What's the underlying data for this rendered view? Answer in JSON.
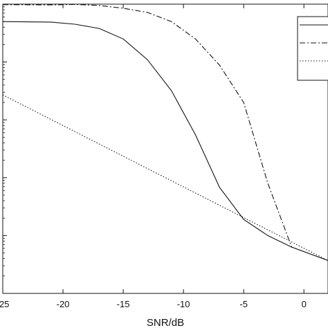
{
  "chart_data": {
    "type": "line",
    "title": "",
    "xlabel": "SNR/dB",
    "ylabel": "",
    "y_scale": "log",
    "xlim": [
      -25,
      2
    ],
    "ylim": [
      1e-05,
      1
    ],
    "grid": false,
    "legend_position": "top-right",
    "x_tick_labels": [
      "-25",
      "-20",
      "-15",
      "-10",
      "-5",
      "0"
    ],
    "x_ticks": [
      -25,
      -20,
      -15,
      -10,
      -5,
      0
    ],
    "series": [
      {
        "style": "solid",
        "x": [
          -25,
          -21,
          -19,
          -17,
          -15,
          -13,
          -11,
          -9,
          -7,
          -5,
          -3,
          -1,
          2
        ],
        "y": [
          0.5,
          0.49,
          0.45,
          0.38,
          0.25,
          0.11,
          0.032,
          0.0055,
          0.00068,
          0.00019,
          0.0001,
          6.3e-05,
          3.7e-05
        ]
      },
      {
        "style": "dashdot",
        "x": [
          -25,
          -21,
          -19,
          -17,
          -15,
          -13,
          -11,
          -9,
          -7,
          -5,
          -3,
          -1
        ],
        "y": [
          0.98,
          0.97,
          0.99,
          0.95,
          0.85,
          0.72,
          0.5,
          0.25,
          0.088,
          0.02,
          0.0008,
          6.2e-05
        ]
      },
      {
        "style": "dotted",
        "x": [
          -25,
          2
        ],
        "y": [
          0.027,
          3.7e-05
        ]
      }
    ]
  }
}
